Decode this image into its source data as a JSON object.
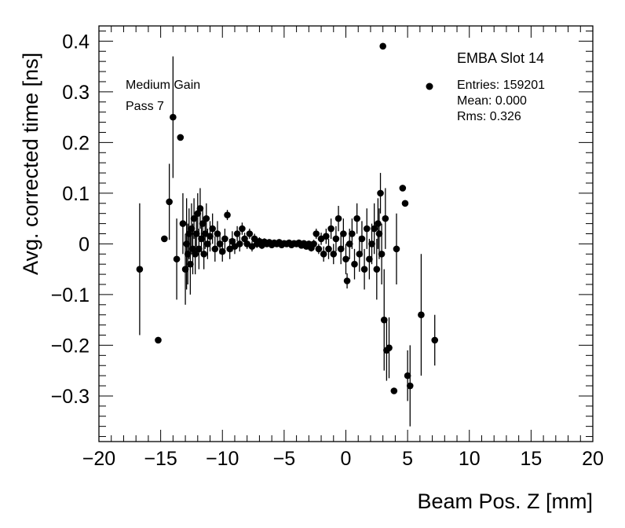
{
  "chart_data": {
    "type": "scatter",
    "title": "",
    "xlabel": "Beam Pos. Z [mm]",
    "ylabel": "Avg. corrected time [ns]",
    "xlim": [
      -20,
      20
    ],
    "ylim": [
      -0.39,
      0.43
    ],
    "x_ticks": [
      -20,
      -15,
      -10,
      -5,
      0,
      5,
      10,
      15,
      20
    ],
    "x_tick_labels": [
      "−20",
      "−15",
      "−10",
      "−5",
      "0",
      "5",
      "10",
      "15",
      "20"
    ],
    "y_ticks": [
      -0.3,
      -0.2,
      -0.1,
      0,
      0.1,
      0.2,
      0.3,
      0.4
    ],
    "y_tick_labels": [
      "−0.3",
      "−0.2",
      "−0.1",
      "0",
      "0.1",
      "0.2",
      "0.3",
      "0.4"
    ],
    "grid": false,
    "annotations": [
      "Medium Gain",
      "Pass 7"
    ],
    "stats_box": {
      "title": "EMBA Slot 14",
      "lines": [
        "Entries: 159201",
        "Mean: 0.000",
        "Rms: 0.326"
      ],
      "marker_color": "#000000"
    },
    "marker_color": "#000000",
    "points": [
      {
        "x": -16.7,
        "y": -0.05,
        "err": 0.13
      },
      {
        "x": -15.2,
        "y": -0.19,
        "err": 0.0
      },
      {
        "x": -14.7,
        "y": 0.01,
        "err": 0.0
      },
      {
        "x": -14.3,
        "y": 0.083,
        "err": 0.075
      },
      {
        "x": -14.0,
        "y": 0.25,
        "err": 0.12
      },
      {
        "x": -13.7,
        "y": -0.03,
        "err": 0.08
      },
      {
        "x": -13.4,
        "y": 0.21,
        "err": 0.0
      },
      {
        "x": -13.2,
        "y": 0.04,
        "err": 0.06
      },
      {
        "x": -13.0,
        "y": -0.05,
        "err": 0.07
      },
      {
        "x": -12.9,
        "y": 0.0,
        "err": 0.09
      },
      {
        "x": -12.8,
        "y": -0.02,
        "err": 0.06
      },
      {
        "x": -12.7,
        "y": 0.02,
        "err": 0.05
      },
      {
        "x": -12.6,
        "y": -0.04,
        "err": 0.06
      },
      {
        "x": -12.5,
        "y": 0.03,
        "err": 0.05
      },
      {
        "x": -12.4,
        "y": -0.01,
        "err": 0.05
      },
      {
        "x": -12.3,
        "y": 0.05,
        "err": 0.04
      },
      {
        "x": -12.2,
        "y": -0.02,
        "err": 0.04
      },
      {
        "x": -12.1,
        "y": 0.02,
        "err": 0.04
      },
      {
        "x": -12.0,
        "y": 0.06,
        "err": 0.04
      },
      {
        "x": -11.9,
        "y": -0.01,
        "err": 0.04
      },
      {
        "x": -11.8,
        "y": 0.07,
        "err": 0.04
      },
      {
        "x": -11.7,
        "y": 0.01,
        "err": 0.03
      },
      {
        "x": -11.6,
        "y": 0.04,
        "err": 0.03
      },
      {
        "x": -11.5,
        "y": -0.02,
        "err": 0.03
      },
      {
        "x": -11.4,
        "y": 0.02,
        "err": 0.03
      },
      {
        "x": -11.3,
        "y": 0.05,
        "err": 0.03
      },
      {
        "x": -11.2,
        "y": 0.0,
        "err": 0.03
      },
      {
        "x": -11.0,
        "y": 0.015,
        "err": 0.03
      },
      {
        "x": -10.8,
        "y": 0.03,
        "err": 0.03
      },
      {
        "x": -10.6,
        "y": -0.01,
        "err": 0.025
      },
      {
        "x": -10.4,
        "y": 0.02,
        "err": 0.025
      },
      {
        "x": -10.2,
        "y": 0.0,
        "err": 0.02
      },
      {
        "x": -10.0,
        "y": -0.015,
        "err": 0.02
      },
      {
        "x": -9.8,
        "y": 0.01,
        "err": 0.02
      },
      {
        "x": -9.6,
        "y": 0.057,
        "err": 0.01
      },
      {
        "x": -9.4,
        "y": -0.01,
        "err": 0.02
      },
      {
        "x": -9.2,
        "y": 0.005,
        "err": 0.02
      },
      {
        "x": -9.0,
        "y": -0.005,
        "err": 0.015
      },
      {
        "x": -8.8,
        "y": 0.02,
        "err": 0.015
      },
      {
        "x": -8.6,
        "y": 0.0,
        "err": 0.015
      },
      {
        "x": -8.4,
        "y": 0.03,
        "err": 0.012
      },
      {
        "x": -8.2,
        "y": 0.01,
        "err": 0.012
      },
      {
        "x": -8.0,
        "y": 0.0,
        "err": 0.01
      },
      {
        "x": -7.8,
        "y": 0.02,
        "err": 0.01
      },
      {
        "x": -7.6,
        "y": -0.005,
        "err": 0.01
      },
      {
        "x": -7.4,
        "y": 0.01,
        "err": 0.01
      },
      {
        "x": -7.2,
        "y": 0.0,
        "err": 0.008
      },
      {
        "x": -7.0,
        "y": 0.005,
        "err": 0.008
      },
      {
        "x": -6.8,
        "y": -0.003,
        "err": 0.007
      },
      {
        "x": -6.6,
        "y": 0.004,
        "err": 0.007
      },
      {
        "x": -6.4,
        "y": 0.0,
        "err": 0.006
      },
      {
        "x": -6.2,
        "y": 0.003,
        "err": 0.006
      },
      {
        "x": -6.0,
        "y": -0.002,
        "err": 0.005
      },
      {
        "x": -5.8,
        "y": 0.002,
        "err": 0.005
      },
      {
        "x": -5.6,
        "y": 0.0,
        "err": 0.005
      },
      {
        "x": -5.4,
        "y": 0.003,
        "err": 0.005
      },
      {
        "x": -5.2,
        "y": -0.002,
        "err": 0.005
      },
      {
        "x": -5.0,
        "y": 0.001,
        "err": 0.004
      },
      {
        "x": -4.8,
        "y": 0.0,
        "err": 0.004
      },
      {
        "x": -4.6,
        "y": 0.002,
        "err": 0.004
      },
      {
        "x": -4.4,
        "y": -0.002,
        "err": 0.004
      },
      {
        "x": -4.2,
        "y": 0.001,
        "err": 0.004
      },
      {
        "x": -4.0,
        "y": 0.0,
        "err": 0.004
      },
      {
        "x": -3.8,
        "y": 0.002,
        "err": 0.005
      },
      {
        "x": -3.6,
        "y": -0.003,
        "err": 0.005
      },
      {
        "x": -3.4,
        "y": 0.001,
        "err": 0.005
      },
      {
        "x": -3.2,
        "y": -0.005,
        "err": 0.006
      },
      {
        "x": -3.0,
        "y": 0.0,
        "err": 0.006
      },
      {
        "x": -2.8,
        "y": -0.008,
        "err": 0.007
      },
      {
        "x": -2.6,
        "y": 0.0,
        "err": 0.008
      },
      {
        "x": -2.4,
        "y": 0.02,
        "err": 0.01
      },
      {
        "x": -2.2,
        "y": -0.01,
        "err": 0.01
      },
      {
        "x": -2.0,
        "y": 0.01,
        "err": 0.012
      },
      {
        "x": -1.8,
        "y": -0.02,
        "err": 0.015
      },
      {
        "x": -1.6,
        "y": 0.015,
        "err": 0.015
      },
      {
        "x": -1.4,
        "y": -0.01,
        "err": 0.02
      },
      {
        "x": -1.2,
        "y": 0.03,
        "err": 0.02
      },
      {
        "x": -1.0,
        "y": -0.02,
        "err": 0.02
      },
      {
        "x": -0.8,
        "y": 0.01,
        "err": 0.025
      },
      {
        "x": -0.6,
        "y": 0.05,
        "err": 0.025
      },
      {
        "x": -0.4,
        "y": -0.01,
        "err": 0.03
      },
      {
        "x": -0.2,
        "y": 0.02,
        "err": 0.03
      },
      {
        "x": 0.0,
        "y": -0.03,
        "err": 0.03
      },
      {
        "x": 0.1,
        "y": -0.073,
        "err": 0.015
      },
      {
        "x": 0.3,
        "y": 0.0,
        "err": 0.03
      },
      {
        "x": 0.5,
        "y": 0.02,
        "err": 0.03
      },
      {
        "x": 0.7,
        "y": -0.04,
        "err": 0.03
      },
      {
        "x": 0.9,
        "y": 0.05,
        "err": 0.03
      },
      {
        "x": 1.1,
        "y": -0.02,
        "err": 0.035
      },
      {
        "x": 1.3,
        "y": 0.01,
        "err": 0.035
      },
      {
        "x": 1.5,
        "y": -0.05,
        "err": 0.04
      },
      {
        "x": 1.7,
        "y": 0.03,
        "err": 0.04
      },
      {
        "x": 1.9,
        "y": -0.03,
        "err": 0.04
      },
      {
        "x": 2.1,
        "y": 0.0,
        "err": 0.04
      },
      {
        "x": 2.3,
        "y": 0.03,
        "err": 0.05
      },
      {
        "x": 2.5,
        "y": -0.05,
        "err": 0.06
      },
      {
        "x": 2.6,
        "y": 0.04,
        "err": 0.05
      },
      {
        "x": 2.7,
        "y": 0.02,
        "err": 0.05
      },
      {
        "x": 2.8,
        "y": 0.1,
        "err": 0.04
      },
      {
        "x": 2.9,
        "y": -0.02,
        "err": 0.06
      },
      {
        "x": 3.0,
        "y": 0.39,
        "err": 0.0
      },
      {
        "x": 3.1,
        "y": -0.15,
        "err": 0.1
      },
      {
        "x": 3.2,
        "y": 0.05,
        "err": 0.06
      },
      {
        "x": 3.3,
        "y": -0.21,
        "err": 0.06
      },
      {
        "x": 3.5,
        "y": -0.205,
        "err": 0.06
      },
      {
        "x": 3.9,
        "y": -0.29,
        "err": 0.0
      },
      {
        "x": 4.1,
        "y": -0.01,
        "err": 0.07
      },
      {
        "x": 4.6,
        "y": 0.11,
        "err": 0.0
      },
      {
        "x": 4.8,
        "y": 0.08,
        "err": 0.0
      },
      {
        "x": 5.0,
        "y": -0.26,
        "err": 0.05
      },
      {
        "x": 5.2,
        "y": -0.28,
        "err": 0.08
      },
      {
        "x": 6.1,
        "y": -0.14,
        "err": 0.12
      },
      {
        "x": 7.2,
        "y": -0.19,
        "err": 0.05
      }
    ]
  }
}
